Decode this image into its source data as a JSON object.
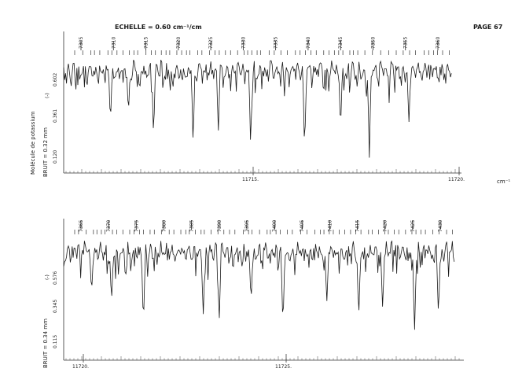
{
  "header": {
    "scale_label": "ECHELLE = 0.60 cm⁻¹/cm",
    "page_label": "PAGE 67"
  },
  "side_labels": {
    "molecule": "Molécule de potassium"
  },
  "unit": "cm⁻¹",
  "chart_data": [
    {
      "type": "line",
      "title": "",
      "noise_label": "BRUIT = 0.32 mm",
      "scale_marker": "(-)",
      "y_ticks": [
        "0.602",
        "0.361",
        "0.120"
      ],
      "x_ticks": [
        "11715.",
        "11720."
      ],
      "xlim": [
        11709.6,
        11720.4
      ],
      "line_index_labels": [
        "7305",
        "7310",
        "7315",
        "7320",
        "7325",
        "7330",
        "7335",
        "7340",
        "7345",
        "7350",
        "7355",
        "7360"
      ],
      "absorption_dips": [
        {
          "x": 11710.9,
          "depth": 0.55
        },
        {
          "x": 11711.4,
          "depth": 0.45
        },
        {
          "x": 11712.1,
          "depth": 0.7
        },
        {
          "x": 11713.2,
          "depth": 0.78
        },
        {
          "x": 11713.9,
          "depth": 0.65
        },
        {
          "x": 11714.8,
          "depth": 0.8
        },
        {
          "x": 11716.3,
          "depth": 0.85
        },
        {
          "x": 11717.3,
          "depth": 0.62
        },
        {
          "x": 11718.1,
          "depth": 0.9
        },
        {
          "x": 11719.2,
          "depth": 0.55
        }
      ]
    },
    {
      "type": "line",
      "title": "",
      "noise_label": "BRUIT = 0.34 mm",
      "scale_marker": "(-)",
      "y_ticks": [
        "0.576",
        "0.345",
        "0.115"
      ],
      "x_ticks": [
        "11720.",
        "11725."
      ],
      "xlim": [
        11719.6,
        11729.4
      ],
      "line_index_labels": [
        "7365",
        "7370",
        "7375",
        "7380",
        "7385",
        "7390",
        "7395",
        "7400",
        "7405",
        "7410",
        "7415",
        "7420",
        "7425",
        "7430"
      ],
      "absorption_dips": [
        {
          "x": 11720.3,
          "depth": 0.45
        },
        {
          "x": 11720.8,
          "depth": 0.55
        },
        {
          "x": 11721.6,
          "depth": 0.8
        },
        {
          "x": 11723.1,
          "depth": 0.7
        },
        {
          "x": 11723.5,
          "depth": 0.78
        },
        {
          "x": 11724.3,
          "depth": 0.55
        },
        {
          "x": 11725.1,
          "depth": 0.82
        },
        {
          "x": 11726.2,
          "depth": 0.55
        },
        {
          "x": 11727.0,
          "depth": 0.72
        },
        {
          "x": 11727.6,
          "depth": 0.62
        },
        {
          "x": 11728.4,
          "depth": 0.88
        },
        {
          "x": 11729.0,
          "depth": 0.7
        }
      ]
    }
  ]
}
